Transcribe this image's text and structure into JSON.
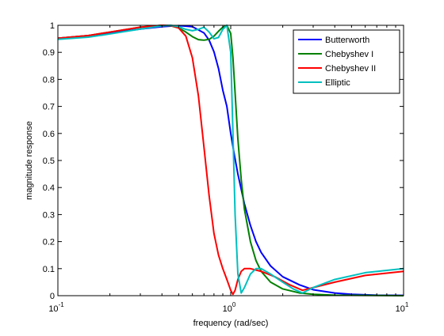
{
  "chart_data": {
    "type": "line",
    "title": "",
    "xlabel": "frequency (rad/sec)",
    "ylabel": "magnitude response",
    "xscale": "log",
    "xlim": [
      0.1,
      10
    ],
    "ylim": [
      0,
      1
    ],
    "grid": false,
    "legend_position": "top-right",
    "xticks": [
      {
        "value": 0.1,
        "base": "10",
        "exp": "-1"
      },
      {
        "value": 1,
        "base": "10",
        "exp": "0"
      },
      {
        "value": 10,
        "base": "10",
        "exp": "1"
      }
    ],
    "yticks": [
      {
        "value": 0,
        "label": "0"
      },
      {
        "value": 0.1,
        "label": "0.1"
      },
      {
        "value": 0.2,
        "label": "0.2"
      },
      {
        "value": 0.3,
        "label": "0.3"
      },
      {
        "value": 0.4,
        "label": "0.4"
      },
      {
        "value": 0.5,
        "label": "0.5"
      },
      {
        "value": 0.6,
        "label": "0.6"
      },
      {
        "value": 0.7,
        "label": "0.7"
      },
      {
        "value": 0.8,
        "label": "0.8"
      },
      {
        "value": 0.9,
        "label": "0.9"
      },
      {
        "value": 1,
        "label": "1"
      }
    ],
    "series": [
      {
        "name": "Butterworth",
        "color": "#0000ff",
        "x": [
          0.1,
          0.15,
          0.2,
          0.3,
          0.4,
          0.5,
          0.6,
          0.7,
          0.75,
          0.8,
          0.85,
          0.9,
          0.95,
          1.0,
          1.05,
          1.1,
          1.2,
          1.3,
          1.4,
          1.5,
          1.7,
          2.0,
          2.5,
          3.0,
          4.0,
          5.0,
          7.0,
          10.0
        ],
        "y": [
          0.952,
          0.962,
          0.972,
          0.986,
          0.995,
          0.999,
          0.995,
          0.972,
          0.945,
          0.902,
          0.84,
          0.76,
          0.7,
          0.6,
          0.52,
          0.45,
          0.34,
          0.26,
          0.2,
          0.16,
          0.11,
          0.07,
          0.04,
          0.022,
          0.01,
          0.005,
          0.002,
          0.001
        ]
      },
      {
        "name": "Chebyshev I",
        "color": "#008000",
        "x": [
          0.1,
          0.15,
          0.2,
          0.3,
          0.4,
          0.45,
          0.5,
          0.55,
          0.6,
          0.65,
          0.7,
          0.75,
          0.8,
          0.85,
          0.9,
          0.95,
          1.0,
          1.03,
          1.06,
          1.1,
          1.15,
          1.2,
          1.3,
          1.4,
          1.5,
          1.7,
          2.0,
          2.5,
          3.0,
          4.0,
          6.0,
          10.0
        ],
        "y": [
          0.952,
          0.962,
          0.975,
          0.993,
          1.0,
          0.998,
          0.99,
          0.975,
          0.958,
          0.947,
          0.945,
          0.948,
          0.96,
          0.978,
          0.993,
          1.0,
          0.97,
          0.88,
          0.75,
          0.58,
          0.43,
          0.32,
          0.2,
          0.13,
          0.09,
          0.05,
          0.025,
          0.01,
          0.005,
          0.002,
          0.001,
          0.0
        ]
      },
      {
        "name": "Chebyshev II",
        "color": "#ff0000",
        "x": [
          0.1,
          0.15,
          0.2,
          0.3,
          0.4,
          0.45,
          0.5,
          0.55,
          0.6,
          0.65,
          0.7,
          0.75,
          0.8,
          0.85,
          0.9,
          0.95,
          1.0,
          1.03,
          1.06,
          1.1,
          1.15,
          1.2,
          1.3,
          1.5,
          1.8,
          2.2,
          2.6,
          3.0,
          4.0,
          6.0,
          10.0
        ],
        "y": [
          0.952,
          0.962,
          0.975,
          0.993,
          1.0,
          0.999,
          0.99,
          0.96,
          0.88,
          0.74,
          0.55,
          0.37,
          0.23,
          0.15,
          0.1,
          0.06,
          0.02,
          0.005,
          0.02,
          0.06,
          0.09,
          0.1,
          0.1,
          0.09,
          0.07,
          0.04,
          0.02,
          0.03,
          0.05,
          0.075,
          0.09
        ]
      },
      {
        "name": "Elliptic",
        "color": "#00bfbf",
        "x": [
          0.1,
          0.15,
          0.2,
          0.3,
          0.4,
          0.45,
          0.5,
          0.55,
          0.6,
          0.65,
          0.7,
          0.75,
          0.8,
          0.85,
          0.9,
          0.95,
          1.0,
          1.03,
          1.06,
          1.1,
          1.15,
          1.2,
          1.3,
          1.4,
          1.5,
          1.7,
          2.0,
          2.3,
          2.6,
          3.0,
          4.0,
          6.0,
          10.0
        ],
        "y": [
          0.948,
          0.956,
          0.968,
          0.986,
          0.998,
          1.0,
          0.995,
          0.985,
          0.98,
          0.985,
          0.993,
          0.975,
          0.95,
          0.955,
          0.985,
          1.0,
          0.9,
          0.6,
          0.3,
          0.08,
          0.01,
          0.03,
          0.08,
          0.1,
          0.1,
          0.08,
          0.05,
          0.025,
          0.01,
          0.03,
          0.06,
          0.085,
          0.1
        ]
      }
    ]
  }
}
